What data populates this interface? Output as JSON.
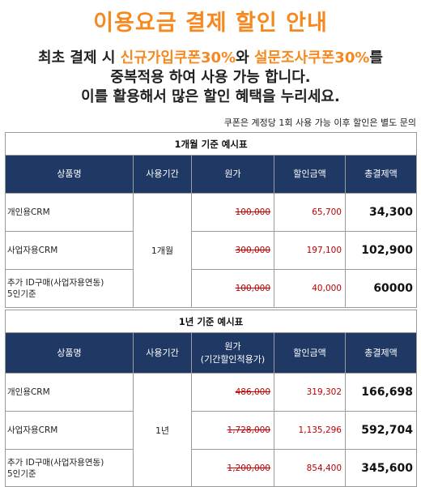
{
  "title": "이용요금 결제 할인 안내",
  "intro": {
    "line1_prefix": "최초 결제 시 ",
    "coupon_new": "신규가입쿠폰30%",
    "line1_mid": "와 ",
    "coupon_survey": "설문조사쿠폰30%",
    "line1_suffix": "를",
    "line2": "중복적용 하여 사용 가능 합니다.",
    "line3": "이를 활용해서 많은 할인 혜택을 누리세요."
  },
  "note": "쿠폰은 계정당 1회 사용 가능 이후 할인은 별도 문의",
  "tables": [
    {
      "caption": "1개월 기준 예시표",
      "headers": {
        "product": "상품명",
        "period": "사용기간",
        "original": "원가",
        "discount": "할인금액",
        "total": "총결제액"
      },
      "period": "1개월",
      "rows": [
        {
          "product": "개인용CRM",
          "original": "100,000",
          "discount": "65,700",
          "total": "34,300"
        },
        {
          "product": "사업자용CRM",
          "original": "300,000",
          "discount": "197,100",
          "total": "102,900"
        },
        {
          "product": "추가 ID구매(사업자용연동)\n5인기준",
          "original": "100,000",
          "discount": "40,000",
          "total": "60000"
        }
      ]
    },
    {
      "caption": "1년 기준 예시표",
      "headers": {
        "product": "상품명",
        "period": "사용기간",
        "original": "원가\n(기간할인적용가)",
        "discount": "할인금액",
        "total": "총결제액"
      },
      "period": "1년",
      "rows": [
        {
          "product": "개인용CRM",
          "original": "486,000",
          "discount": "319,302",
          "total": "166,698"
        },
        {
          "product": "사업자용CRM",
          "original": "1,728,000",
          "discount": "1,135,296",
          "total": "592,704"
        },
        {
          "product": "추가 ID구매(사업자용연동)\n5인기준",
          "original": "1,200,000",
          "discount": "854,400",
          "total": "345,600"
        }
      ]
    }
  ],
  "colors": {
    "accent": "#f5891f",
    "header_bg": "#1f3864",
    "discount_text": "#c00000"
  }
}
